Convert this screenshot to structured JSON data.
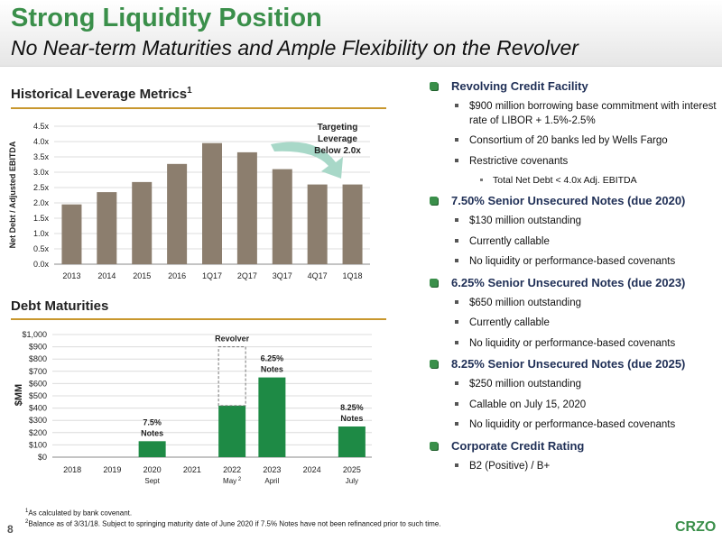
{
  "title": "Strong Liquidity Position",
  "subtitle": "No Near-term Maturities and Ample Flexibility on the Revolver",
  "leverage_section": {
    "title": "Historical Leverage Metrics",
    "sup": "1"
  },
  "maturities_section": {
    "title": "Debt Maturities"
  },
  "chart_data": [
    {
      "type": "bar",
      "title": "",
      "ylabel": "Net Debt / Adjusted EBITDA",
      "categories": [
        "2013",
        "2014",
        "2015",
        "2016",
        "1Q17",
        "2Q17",
        "3Q17",
        "4Q17",
        "1Q18"
      ],
      "values": [
        1.95,
        2.35,
        2.68,
        3.27,
        3.95,
        3.65,
        3.1,
        2.6,
        2.6
      ],
      "ylim": [
        0,
        4.5
      ],
      "yticks": [
        "0.0x",
        "0.5x",
        "1.0x",
        "1.5x",
        "2.0x",
        "2.5x",
        "3.0x",
        "3.5x",
        "4.0x",
        "4.5x"
      ],
      "annotation": [
        "Targeting",
        "Leverage",
        "Below 2.0x"
      ],
      "colors": {
        "bar": "#8c7e6e",
        "arrow": "#a8d8c8"
      }
    },
    {
      "type": "bar",
      "title": "",
      "ylabel": "$MM",
      "categories": [
        "2018",
        "2019",
        "2020",
        "2021",
        "2022",
        "2023",
        "2024",
        "2025"
      ],
      "sublabels": [
        "",
        "",
        "Sept",
        "",
        "May",
        "April",
        "",
        "July"
      ],
      "sublabel_sups": [
        "",
        "",
        "",
        "",
        "2",
        "",
        "",
        ""
      ],
      "values": [
        0,
        0,
        130,
        0,
        420,
        650,
        0,
        250
      ],
      "revolver_capacity": {
        "category": "2022",
        "value": 900,
        "label": "Revolver"
      },
      "bar_labels": [
        {
          "category": "2020",
          "lines": [
            "7.5%",
            "Notes"
          ]
        },
        {
          "category": "2023",
          "lines": [
            "6.25%",
            "Notes"
          ]
        },
        {
          "category": "2025",
          "lines": [
            "8.25%",
            "Notes"
          ]
        }
      ],
      "ylim": [
        0,
        1000
      ],
      "yticks": [
        "$0",
        "$100",
        "$200",
        "$300",
        "$400",
        "$500",
        "$600",
        "$700",
        "$800",
        "$900",
        "$1,000"
      ],
      "colors": {
        "bar": "#1e8a45"
      }
    }
  ],
  "right_items": [
    {
      "level": 1,
      "text": "Revolving Credit Facility"
    },
    {
      "level": 2,
      "text": "$900 million borrowing base commitment with interest rate of LIBOR + 1.5%-2.5%"
    },
    {
      "level": 2,
      "text": "Consortium of 20 banks led by Wells Fargo"
    },
    {
      "level": 2,
      "text": "Restrictive covenants"
    },
    {
      "level": 3,
      "text": "Total Net Debt < 4.0x Adj. EBITDA"
    },
    {
      "level": 1,
      "text": "7.50% Senior Unsecured Notes (due 2020)"
    },
    {
      "level": 2,
      "text": "$130 million outstanding"
    },
    {
      "level": 2,
      "text": "Currently callable"
    },
    {
      "level": 2,
      "text": "No liquidity or performance-based covenants"
    },
    {
      "level": 1,
      "text": "6.25% Senior Unsecured Notes (due 2023)"
    },
    {
      "level": 2,
      "text": "$650 million outstanding"
    },
    {
      "level": 2,
      "text": "Currently callable"
    },
    {
      "level": 2,
      "text": "No liquidity or performance-based covenants"
    },
    {
      "level": 1,
      "text": "8.25% Senior Unsecured Notes (due 2025)"
    },
    {
      "level": 2,
      "text": "$250 million outstanding"
    },
    {
      "level": 2,
      "text": "Callable on July 15, 2020"
    },
    {
      "level": 2,
      "text": "No liquidity or performance-based covenants"
    },
    {
      "level": 1,
      "text": "Corporate Credit Rating"
    },
    {
      "level": 2,
      "text": "B2 (Positive) / B+"
    }
  ],
  "footnotes": [
    {
      "sup": "1",
      "text": "As calculated by bank covenant."
    },
    {
      "sup": "2",
      "text": "Balance as of 3/31/18. Subject to springing maturity date of June 2020 if 7.5% Notes have not been refinanced prior to such time."
    }
  ],
  "page_number": "8",
  "logo": "CRZO"
}
